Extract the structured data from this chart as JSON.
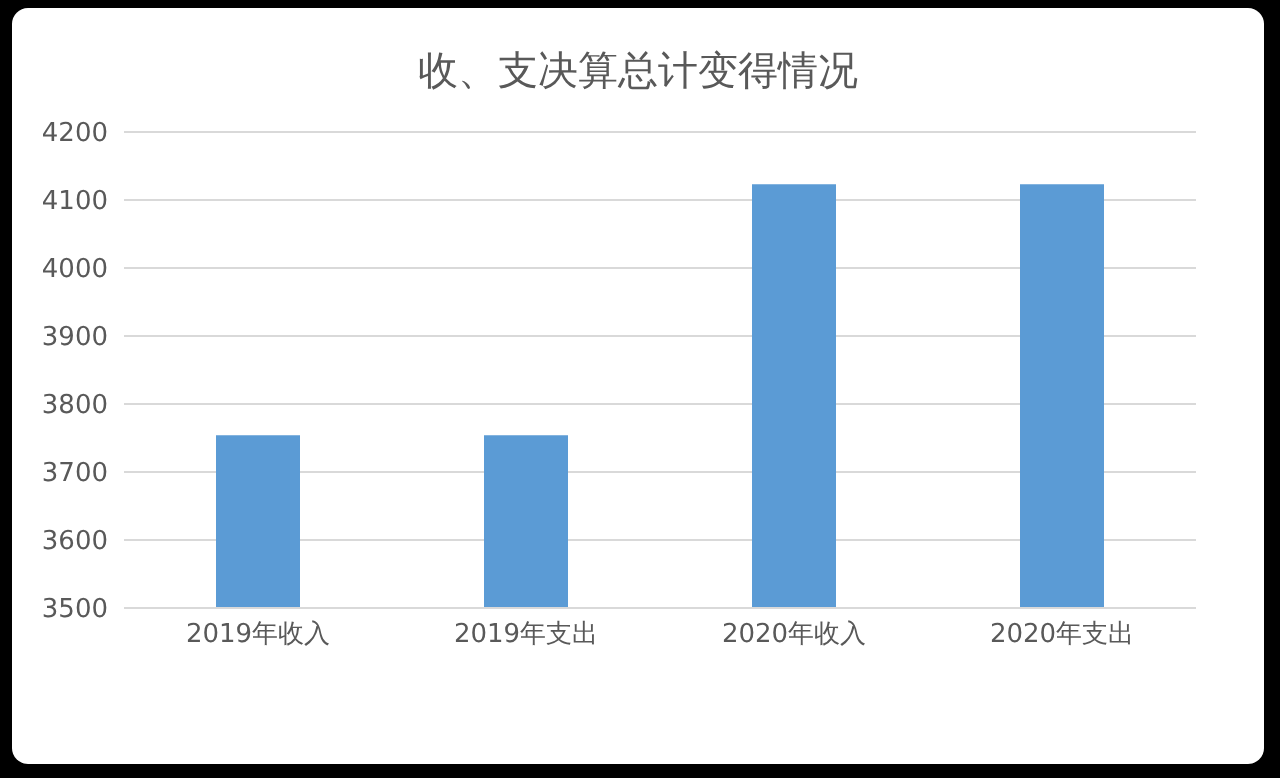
{
  "chart_data": {
    "type": "bar",
    "title": "收、支决算总计变得情况",
    "categories": [
      "2019年收入",
      "2019年支出",
      "2020年收入",
      "2020年支出"
    ],
    "values": [
      3754,
      3754,
      4123,
      4123
    ],
    "color": "#5b9bd5",
    "ylim": [
      3500,
      4200
    ],
    "yticks": [
      3500,
      3600,
      3700,
      3800,
      3900,
      4000,
      4100,
      4200
    ],
    "grid": "y"
  }
}
